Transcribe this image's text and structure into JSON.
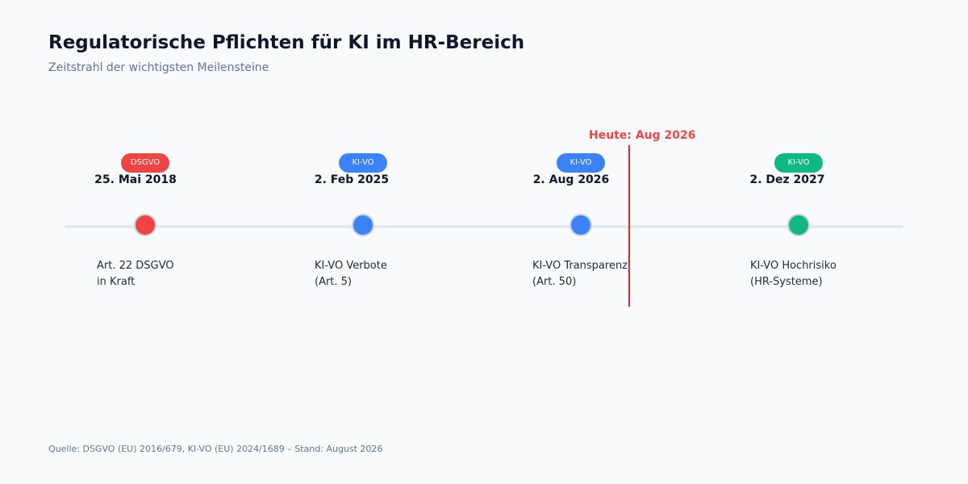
{
  "header": {
    "title": "Regulatorische Pflichten für KI im HR-Bereich",
    "subtitle": "Zeitstrahl der wichtigsten Meilensteine"
  },
  "today": {
    "label": "Heute: Aug 2026",
    "color": "#dc2626"
  },
  "milestones": [
    {
      "badge": "DSGVO",
      "date": "25. Mai 2018",
      "line1": "Art. 22 DSGVO",
      "line2": "in Kraft",
      "color": "#ef4444"
    },
    {
      "badge": "KI-VO",
      "date": "2. Feb 2025",
      "line1": "KI-VO Verbote",
      "line2": "(Art. 5)",
      "color": "#3b82f6"
    },
    {
      "badge": "KI-VO",
      "date": "2. Aug 2026",
      "line1": "KI-VO Transparenz",
      "line2": "(Art. 50)",
      "color": "#3b82f6"
    },
    {
      "badge": "KI-VO",
      "date": "2. Dez 2027",
      "line1": "KI-VO Hochrisiko",
      "line2": "(HR-Systeme)",
      "color": "#10b981"
    }
  ],
  "footer": {
    "source": "Quelle: DSGVO (EU) 2016/679, KI-VO (EU) 2024/1689 – Stand: August 2026"
  }
}
